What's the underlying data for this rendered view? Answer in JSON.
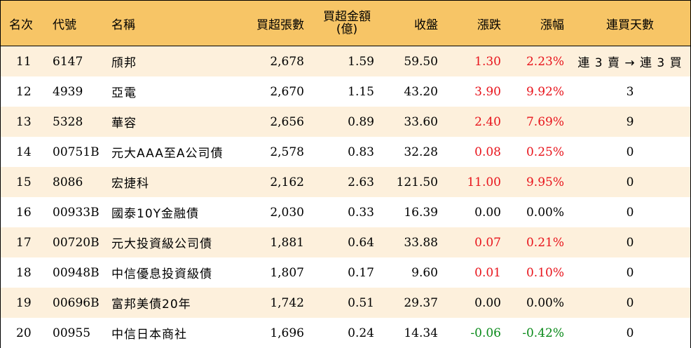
{
  "headers": {
    "rank": "名次",
    "code": "代號",
    "name": "名稱",
    "net_lots": "買超張數",
    "net_amount_line1": "買超金額",
    "net_amount_line2": "(億)",
    "close": "收盤",
    "change": "漲跌",
    "pct": "漲幅",
    "streak": "連買天數"
  },
  "colors": {
    "header_bg": "#f7c566",
    "stripe_bg": "#fdf0dc",
    "up": "#e8141c",
    "down": "#0a8a1a"
  },
  "rows": [
    {
      "rank": "11",
      "code": "6147",
      "name": "頎邦",
      "net_lots": "2,678",
      "net_amount": "1.59",
      "close": "59.50",
      "change": "1.30",
      "pct": "2.23%",
      "streak": "連 3 賣 → 連 3 買",
      "dir": "up"
    },
    {
      "rank": "12",
      "code": "4939",
      "name": "亞電",
      "net_lots": "2,670",
      "net_amount": "1.15",
      "close": "43.20",
      "change": "3.90",
      "pct": "9.92%",
      "streak": "3",
      "dir": "up"
    },
    {
      "rank": "13",
      "code": "5328",
      "name": "華容",
      "net_lots": "2,656",
      "net_amount": "0.89",
      "close": "33.60",
      "change": "2.40",
      "pct": "7.69%",
      "streak": "9",
      "dir": "up"
    },
    {
      "rank": "14",
      "code": "00751B",
      "name": "元大AAA至A公司債",
      "net_lots": "2,578",
      "net_amount": "0.83",
      "close": "32.28",
      "change": "0.08",
      "pct": "0.25%",
      "streak": "0",
      "dir": "up"
    },
    {
      "rank": "15",
      "code": "8086",
      "name": "宏捷科",
      "net_lots": "2,162",
      "net_amount": "2.63",
      "close": "121.50",
      "change": "11.00",
      "pct": "9.95%",
      "streak": "0",
      "dir": "up"
    },
    {
      "rank": "16",
      "code": "00933B",
      "name": "國泰10Y金融債",
      "net_lots": "2,030",
      "net_amount": "0.33",
      "close": "16.39",
      "change": "0.00",
      "pct": "0.00%",
      "streak": "0",
      "dir": "flat"
    },
    {
      "rank": "17",
      "code": "00720B",
      "name": "元大投資級公司債",
      "net_lots": "1,881",
      "net_amount": "0.64",
      "close": "33.88",
      "change": "0.07",
      "pct": "0.21%",
      "streak": "0",
      "dir": "up"
    },
    {
      "rank": "18",
      "code": "00948B",
      "name": "中信優息投資級債",
      "net_lots": "1,807",
      "net_amount": "0.17",
      "close": "9.60",
      "change": "0.01",
      "pct": "0.10%",
      "streak": "0",
      "dir": "up"
    },
    {
      "rank": "19",
      "code": "00696B",
      "name": "富邦美債20年",
      "net_lots": "1,742",
      "net_amount": "0.51",
      "close": "29.37",
      "change": "0.00",
      "pct": "0.00%",
      "streak": "0",
      "dir": "flat"
    },
    {
      "rank": "20",
      "code": "00955",
      "name": "中信日本商社",
      "net_lots": "1,696",
      "net_amount": "0.24",
      "close": "14.34",
      "change": "-0.06",
      "pct": "-0.42%",
      "streak": "0",
      "dir": "down"
    }
  ]
}
